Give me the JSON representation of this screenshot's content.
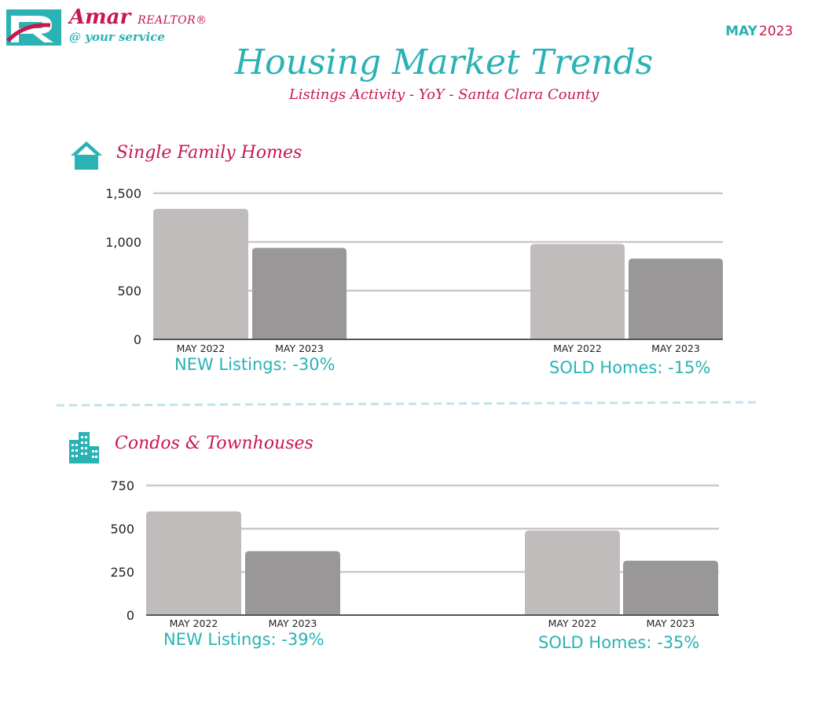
{
  "brand": {
    "name": "Amar",
    "role": "REALTOR®",
    "tagline": "@ your service"
  },
  "report_date": {
    "month": "MAY",
    "year": "2023"
  },
  "title": "Housing Market Trends",
  "subtitle": "Listings Activity - YoY - Santa Clara County",
  "colors": {
    "teal": "#2ab2b4",
    "crimson": "#c8174f",
    "bar_2022": "#c0bcbc",
    "bar_2023": "#999797"
  },
  "sections": [
    {
      "title": "Single Family Homes",
      "icon": "house-icon"
    },
    {
      "title": "Condos & Townhouses",
      "icon": "buildings-icon"
    }
  ],
  "chart_data": [
    {
      "type": "bar",
      "title": "Single Family Homes",
      "groups": [
        {
          "label": "NEW Listings: -30%",
          "categories": [
            "MAY  2022",
            "MAY 2023"
          ],
          "values": [
            1340,
            940
          ]
        },
        {
          "label": "SOLD Homes: -15%",
          "categories": [
            "MAY  2022",
            "MAY 2023"
          ],
          "values": [
            980,
            830
          ]
        }
      ],
      "ylim": [
        0,
        1500
      ],
      "yticks": [
        0,
        500,
        1000,
        1500
      ],
      "ytick_labels": [
        "0",
        "500",
        "1,000",
        "1,500"
      ],
      "grid": true
    },
    {
      "type": "bar",
      "title": "Condos & Townhouses",
      "groups": [
        {
          "label": "NEW Listings: -39%",
          "categories": [
            "MAY  2022",
            "MAY 2023"
          ],
          "values": [
            600,
            370
          ]
        },
        {
          "label": "SOLD Homes: -35%",
          "categories": [
            "MAY  2022",
            "MAY 2023"
          ],
          "values": [
            490,
            315
          ]
        }
      ],
      "ylim": [
        0,
        750
      ],
      "yticks": [
        0,
        250,
        500,
        750
      ],
      "ytick_labels": [
        "0",
        "250",
        "500",
        "750"
      ],
      "grid": true
    }
  ]
}
